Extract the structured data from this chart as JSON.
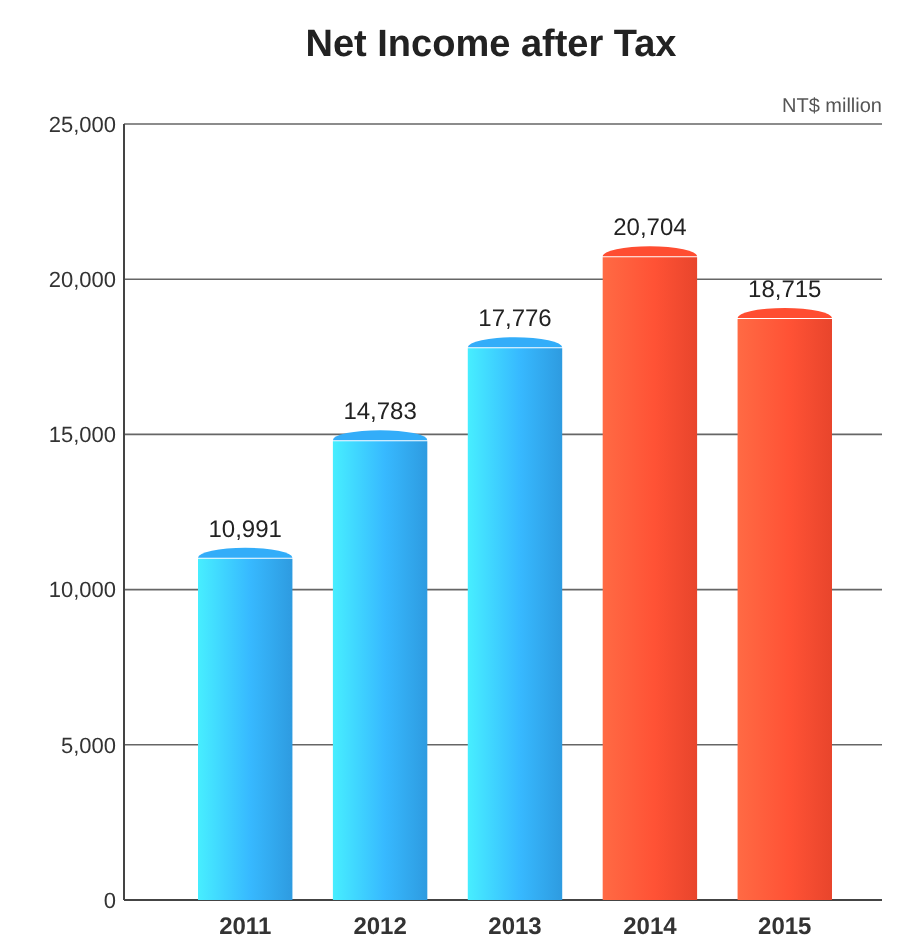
{
  "chart_data": {
    "type": "bar",
    "title": "Net Income after Tax",
    "ylabel": "NT$ million",
    "categories": [
      "2011",
      "2012",
      "2013",
      "2014",
      "2015"
    ],
    "values": [
      10991,
      14783,
      17776,
      20704,
      18715
    ],
    "colors": [
      "#2e9be0",
      "#2e9be0",
      "#2e9be0",
      "#e8452c",
      "#e8452c"
    ],
    "ylim": [
      0,
      25000
    ],
    "yticks": [
      {
        "value": 0,
        "label": "0"
      },
      {
        "value": 5000,
        "label": "5,000"
      },
      {
        "value": 10000,
        "label": "10,000"
      },
      {
        "value": 15000,
        "label": "15,000"
      },
      {
        "value": 20000,
        "label": "20,000"
      },
      {
        "value": 25000,
        "label": "25,000"
      }
    ],
    "value_labels": [
      "10,991",
      "14,783",
      "17,776",
      "20,704",
      "18,715"
    ],
    "grid": "y"
  }
}
